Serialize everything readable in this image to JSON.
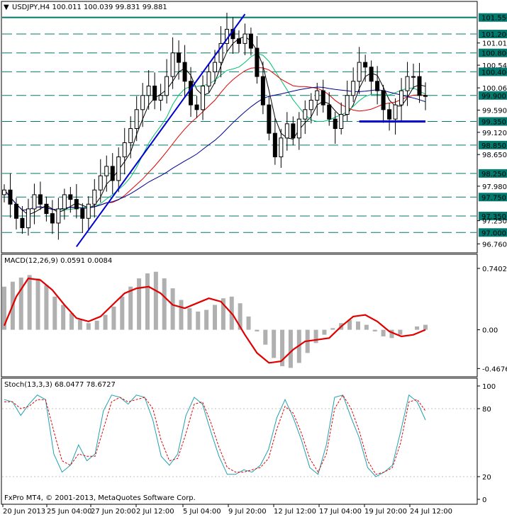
{
  "window": {
    "title": "USDJPY,H4  100.011 100.039 99.831 99.881",
    "copyright": "FxPro MT4, © 2001-2013, MetaQuotes Software Corp."
  },
  "colors": {
    "background": "#ffffff",
    "candle": "#000000",
    "price_label_bg": "#007a6e",
    "price_label_text": "#ffffff",
    "level_line": "#00796b",
    "trendline": "#0000d0",
    "ma_black": "#000000",
    "ma_red": "#e00000",
    "ma_green": "#00c070",
    "ma_blue": "#000090",
    "macd_hist": "#b0b0b0",
    "macd_signal": "#e00000",
    "stoch_main": "#20a0b0",
    "stoch_signal": "#e00000"
  },
  "chart_data": [
    {
      "type": "candlestick",
      "symbol": "USDJPY",
      "timeframe": "H4",
      "ohlc_header": {
        "open": 100.011,
        "high": 100.039,
        "low": 99.831,
        "close": 99.881
      },
      "ylim": [
        96.6,
        101.65
      ],
      "y_tick_labels": [
        "101.550",
        "101.200",
        "101.010",
        "100.800",
        "100.540",
        "100.400",
        "100.060",
        "99.900",
        "99.590",
        "99.350",
        "99.120",
        "98.850",
        "98.650",
        "98.250",
        "97.980",
        "97.750",
        "97.350",
        "97.250",
        "97.000",
        "96.760"
      ],
      "x_tick_labels": [
        "20 Jun 2013",
        "25 Jun 04:00",
        "27 Jun 20:00",
        "2 Jul 12:00",
        "5 Jul 04:00",
        "9 Jul 20:00",
        "12 Jul 12:00",
        "17 Jul 04:00",
        "19 Jul 20:00",
        "24 Jul 12:00"
      ],
      "horizontal_levels": [
        101.55,
        101.2,
        100.8,
        100.4,
        99.9,
        99.35,
        98.85,
        98.25,
        97.75,
        97.35,
        97.0
      ],
      "highlighted_levels": [
        "101.550",
        "101.200",
        "100.800",
        "100.400",
        "99.900",
        "99.350",
        "98.850",
        "98.250",
        "97.750",
        "97.350",
        "97.000"
      ],
      "support_line_level": 99.35,
      "close_series": [
        97.9,
        97.6,
        97.3,
        97.1,
        97.5,
        97.8,
        97.6,
        97.4,
        97.2,
        97.5,
        97.8,
        97.7,
        97.5,
        97.3,
        97.6,
        97.9,
        98.2,
        98.4,
        98.1,
        98.6,
        98.9,
        99.2,
        99.6,
        99.9,
        100.1,
        99.8,
        99.9,
        100.3,
        100.8,
        100.6,
        100.2,
        99.7,
        99.6,
        100.1,
        100.4,
        100.6,
        101.0,
        101.3,
        101.1,
        101.0,
        101.2,
        100.9,
        100.3,
        99.7,
        99.1,
        98.6,
        99.0,
        99.3,
        99.0,
        99.4,
        99.6,
        99.8,
        100.0,
        99.7,
        99.4,
        99.2,
        99.5,
        99.9,
        100.2,
        100.6,
        100.5,
        100.2,
        100.0,
        99.6,
        99.4,
        99.7,
        100.0,
        100.3,
        100.3,
        99.9,
        99.88
      ]
    },
    {
      "type": "line",
      "name": "MACD(12,26,9) 0.0591 0.0084",
      "ylim": [
        -0.55,
        0.8
      ],
      "y_tick_labels": [
        "0.7402",
        "0.00",
        "-0.4676"
      ],
      "histogram": [
        0.52,
        0.58,
        0.63,
        0.66,
        0.62,
        0.54,
        0.4,
        0.3,
        0.2,
        0.12,
        0.08,
        0.11,
        0.18,
        0.28,
        0.4,
        0.52,
        0.62,
        0.68,
        0.7,
        0.62,
        0.5,
        0.36,
        0.26,
        0.22,
        0.24,
        0.3,
        0.38,
        0.4,
        0.32,
        0.16,
        -0.02,
        -0.18,
        -0.34,
        -0.44,
        -0.46,
        -0.4,
        -0.28,
        -0.16,
        -0.06,
        0.02,
        0.08,
        0.12,
        0.1,
        0.06,
        -0.02,
        -0.08,
        -0.1,
        -0.06,
        0.0,
        0.04,
        0.06
      ],
      "signal": [
        0.05,
        0.4,
        0.62,
        0.6,
        0.48,
        0.3,
        0.14,
        0.1,
        0.16,
        0.3,
        0.44,
        0.5,
        0.52,
        0.44,
        0.3,
        0.26,
        0.32,
        0.38,
        0.34,
        0.18,
        -0.06,
        -0.28,
        -0.4,
        -0.38,
        -0.24,
        -0.14,
        -0.12,
        -0.1,
        0.04,
        0.16,
        0.18,
        0.1,
        -0.02,
        -0.08,
        -0.06,
        0.0
      ]
    },
    {
      "type": "line",
      "name": "Stoch(13,3,3) 68.0477 78.6727",
      "ylim": [
        0,
        100
      ],
      "y_tick_labels": [
        "100",
        "80",
        "20",
        "0"
      ],
      "main": [
        88,
        86,
        74,
        84,
        92,
        88,
        40,
        24,
        30,
        48,
        34,
        40,
        78,
        92,
        90,
        84,
        92,
        90,
        70,
        38,
        30,
        40,
        74,
        90,
        84,
        60,
        38,
        22,
        22,
        26,
        24,
        30,
        44,
        72,
        88,
        72,
        52,
        28,
        22,
        48,
        90,
        92,
        72,
        54,
        28,
        20,
        24,
        30,
        60,
        92,
        86,
        70
      ],
      "signal": [
        86,
        86,
        80,
        82,
        88,
        88,
        60,
        34,
        30,
        40,
        38,
        38,
        62,
        86,
        90,
        86,
        88,
        90,
        80,
        52,
        34,
        36,
        58,
        84,
        86,
        68,
        46,
        28,
        24,
        24,
        26,
        28,
        36,
        62,
        82,
        76,
        58,
        36,
        24,
        40,
        80,
        92,
        80,
        60,
        34,
        22,
        24,
        28,
        50,
        86,
        88,
        78
      ]
    }
  ]
}
